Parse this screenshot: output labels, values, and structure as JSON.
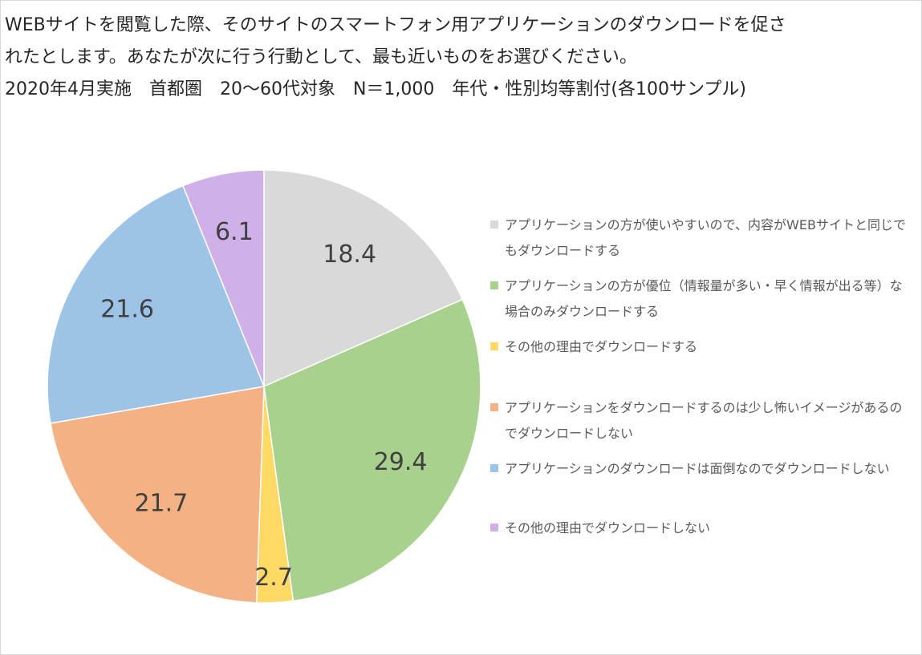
{
  "chart_data": {
    "type": "pie",
    "title_lines": [
      "WEBサイトを閲覧した際、そのサイトのスマートフォン用アプリケーションのダウンロードを促さ",
      "れたとします。あなたが次に行う行動として、最も近いものをお選びください。",
      "2020年4月実施　首都圏　20～60代対象　N＝1,000　年代・性別均等割付(各100サンプル)"
    ],
    "categories": [
      "アプリケーションの方が使いやすいので、内容がWEBサイトと同じでもダウンロードする",
      "アプリケーションの方が優位（情報量が多い・早く情報が出る等）な場合のみダウンロードする",
      "その他の理由でダウンロードする",
      "アプリケーションをダウンロードするのは少し怖いイメージがあるのでダウンロードしない",
      "アプリケーションのダウンロードは面倒なのでダウンロードしない",
      "その他の理由でダウンロードしない"
    ],
    "values": [
      18.4,
      29.4,
      2.7,
      21.7,
      21.6,
      6.1
    ],
    "data_labels": [
      "18.4",
      "29.4",
      "2.7",
      "21.7",
      "21.6",
      "6.1"
    ],
    "colors": [
      "#d9d9d9",
      "#a9d18e",
      "#ffd966",
      "#f4b183",
      "#9dc3e6",
      "#cfb0e8"
    ],
    "start_angle_deg": 0,
    "direction": "clockwise",
    "legend_position": "right"
  }
}
